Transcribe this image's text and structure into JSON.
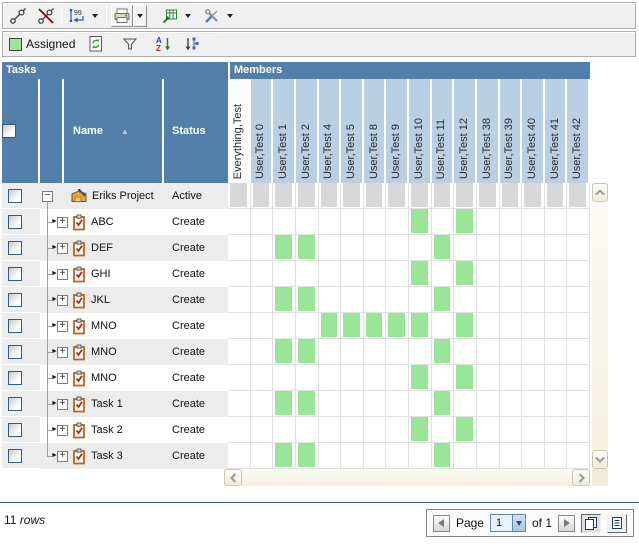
{
  "toolbar": {
    "assigned_label": "Assigned"
  },
  "tasks": {
    "title": "Tasks",
    "columns": [
      "Name",
      "Status"
    ],
    "sort_column": "Name",
    "sort_direction": "asc"
  },
  "members": {
    "title": "Members",
    "columns": [
      "Everything,Test",
      "User,Test 0",
      "User,Test 1",
      "User,Test 2",
      "User,Test 4",
      "User,Test 5",
      "User,Test 8",
      "User,Test 9",
      "User,Test 10",
      "User,Test 11",
      "User,Test 12",
      "User,Test 38",
      "User,Test 39",
      "User,Test 40",
      "User,Test 41",
      "User,Test 42"
    ]
  },
  "rows": [
    {
      "name": "Eriks Project",
      "status": "Active",
      "type": "project",
      "expanded": true,
      "assigned": []
    },
    {
      "name": "ABC",
      "status": "Create",
      "type": "task",
      "assigned": [
        8,
        10
      ]
    },
    {
      "name": "DEF",
      "status": "Create",
      "type": "task",
      "assigned": [
        2,
        3,
        9
      ]
    },
    {
      "name": "GHI",
      "status": "Create",
      "type": "task",
      "assigned": [
        8,
        10
      ]
    },
    {
      "name": "JKL",
      "status": "Create",
      "type": "task",
      "assigned": [
        2,
        3,
        9
      ]
    },
    {
      "name": "MNO",
      "status": "Create",
      "type": "task",
      "assigned": [
        4,
        5,
        6,
        7,
        8,
        10
      ]
    },
    {
      "name": "MNO",
      "status": "Create",
      "type": "task",
      "assigned": [
        2,
        3,
        9
      ]
    },
    {
      "name": "MNO",
      "status": "Create",
      "type": "task",
      "assigned": [
        8,
        10
      ]
    },
    {
      "name": "Task 1",
      "status": "Create",
      "type": "task",
      "assigned": [
        2,
        3,
        9
      ]
    },
    {
      "name": "Task 2",
      "status": "Create",
      "type": "task",
      "assigned": [
        8,
        10
      ]
    },
    {
      "name": "Task 3",
      "status": "Create",
      "type": "task",
      "assigned": [
        2,
        3,
        9
      ]
    }
  ],
  "footer": {
    "rows_count": "11",
    "rows_label": "rows",
    "page_label": "Page",
    "page_value": "1",
    "of_label": "of 1"
  },
  "colors": {
    "assigned_green": "#99e699",
    "header_blue": "#527fa9",
    "member_header_blue": "#bacfe4",
    "stripe_gray": "#ececec",
    "disabled_gray": "#d8d8d8"
  }
}
